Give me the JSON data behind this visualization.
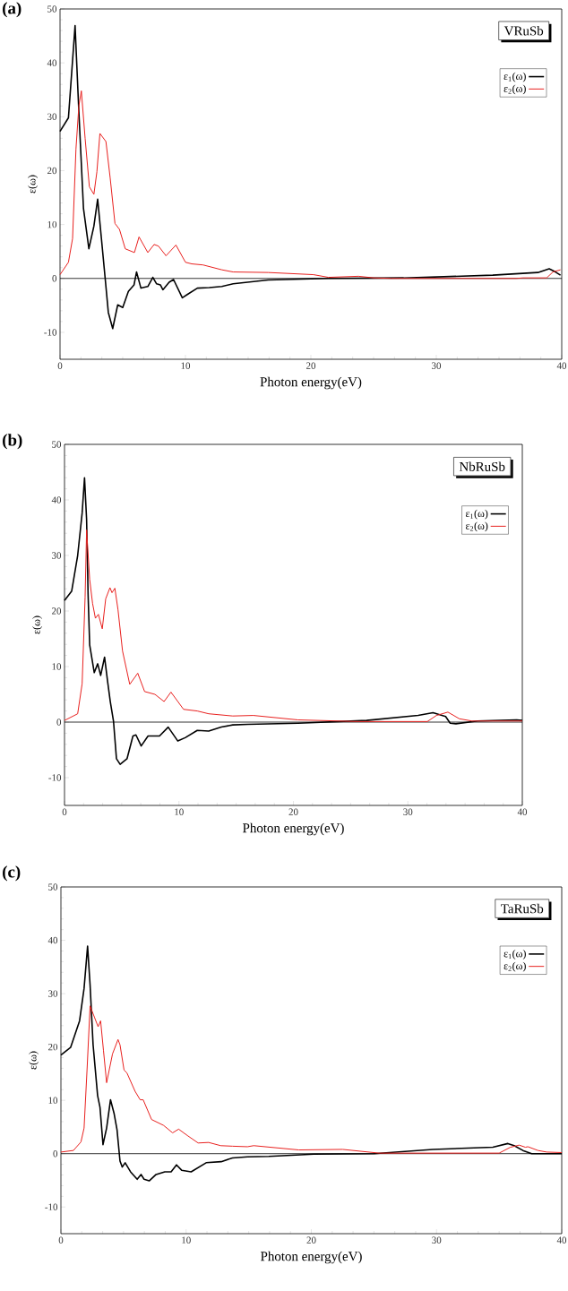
{
  "chart_data": [
    {
      "type": "line",
      "title": "(a)",
      "annotations": [
        "VRuSb"
      ],
      "xlabel": "Photon energy(eV)",
      "ylabel": "ε(ω)",
      "xlim": [
        0,
        40
      ],
      "ylim": [
        -15,
        50
      ],
      "xticks": [
        0,
        10,
        20,
        30,
        40
      ],
      "yticks": [
        -10,
        0,
        10,
        20,
        30,
        40,
        50
      ],
      "legend": "top right",
      "ref_lines": [
        {
          "axis": "y",
          "value": 0,
          "color": "#000000"
        }
      ],
      "series": [
        {
          "name": "ε$_{1}$(ω)",
          "color": "#000000",
          "x": [
            0,
            0.67,
            1.2,
            1.5,
            1.87,
            2.3,
            2.7,
            3.0,
            3.3,
            3.6,
            3.85,
            4.2,
            4.6,
            5.0,
            5.45,
            5.9,
            6.1,
            6.45,
            7.0,
            7.4,
            7.7,
            8.0,
            8.2,
            8.7,
            9.05,
            9.75,
            10.2,
            10.95,
            11.9,
            12.9,
            13.8,
            16.6,
            21.4,
            27.4,
            34.5,
            38.1,
            39.0,
            39.5,
            39.9
          ],
          "values": [
            27.3,
            29.8,
            46.9,
            31,
            13,
            5.5,
            9.7,
            14.7,
            7.4,
            0,
            -6.3,
            -9.3,
            -4.9,
            -5.4,
            -2.4,
            -1.2,
            1.2,
            -1.8,
            -1.5,
            0.2,
            -1.0,
            -1.2,
            -2.1,
            -0.7,
            -0.2,
            -3.6,
            -2.9,
            -1.8,
            -1.7,
            -1.5,
            -1.0,
            -0.3,
            0,
            0.1,
            0.6,
            1.1,
            1.8,
            1.2,
            0.6
          ]
        },
        {
          "name": "ε$_{2}$(ω)",
          "color": "#e8201e",
          "x": [
            0,
            0.67,
            1.0,
            1.27,
            1.5,
            1.7,
            2.0,
            2.34,
            2.7,
            2.94,
            3.18,
            3.66,
            4.0,
            4.38,
            4.74,
            5.2,
            5.93,
            6.3,
            7.0,
            7.5,
            7.85,
            8.45,
            9.24,
            10.0,
            10.5,
            11.4,
            12.9,
            13.8,
            16.6,
            20.2,
            21.4,
            23.8,
            25,
            26.4,
            36.4,
            36.9,
            38.8,
            39.3,
            39.9
          ],
          "values": [
            0.7,
            3,
            7.4,
            24,
            32,
            34.8,
            26,
            17,
            15.6,
            19.8,
            26.9,
            25.4,
            18.6,
            10.2,
            9.1,
            5.5,
            4.8,
            7.7,
            4.8,
            6.3,
            6.0,
            4.2,
            6.2,
            3.0,
            2.7,
            2.5,
            1.6,
            1.2,
            1.1,
            0.7,
            0.2,
            0.4,
            0.1,
            0,
            0,
            0.1,
            0.1,
            1.2,
            1.6
          ]
        }
      ]
    },
    {
      "type": "line",
      "title": "(b)",
      "annotations": [
        "NbRuSb"
      ],
      "xlabel": "Photon energy(eV)",
      "ylabel": "ε(ω)",
      "xlim": [
        0,
        40
      ],
      "ylim": [
        -15,
        50
      ],
      "xticks": [
        0,
        10,
        20,
        30,
        40
      ],
      "yticks": [
        -10,
        0,
        10,
        20,
        30,
        40,
        50
      ],
      "legend": "top right",
      "ref_lines": [
        {
          "axis": "y",
          "value": 0,
          "color": "#000000"
        }
      ],
      "series": [
        {
          "name": "ε$_{1}$(ω)",
          "color": "#000000",
          "x": [
            0,
            0.63,
            1.15,
            1.54,
            1.75,
            1.93,
            2.06,
            2.2,
            2.6,
            2.9,
            3.16,
            3.5,
            3.76,
            4.0,
            4.28,
            4.54,
            4.86,
            5.46,
            5.98,
            6.24,
            6.7,
            7.3,
            8.3,
            9.06,
            9.9,
            10.55,
            11.6,
            12.6,
            13.7,
            14.7,
            16.0,
            20.4,
            26.4,
            30.9,
            32.2,
            33.3,
            33.7,
            34.2,
            36.1,
            39.5,
            40
          ],
          "values": [
            21.9,
            23.6,
            30,
            37.6,
            44,
            36.5,
            23,
            13.9,
            8.9,
            10.5,
            8.4,
            11.7,
            7.4,
            3.7,
            0.2,
            -6.6,
            -7.6,
            -6.6,
            -2.5,
            -2.3,
            -4.3,
            -2.5,
            -2.5,
            -0.9,
            -3.4,
            -2.8,
            -1.5,
            -1.6,
            -0.9,
            -0.5,
            -0.4,
            -0.2,
            0.3,
            1.2,
            1.7,
            1.0,
            -0.2,
            -0.3,
            0.2,
            0.4,
            0.3
          ]
        },
        {
          "name": "ε$_{2}$(ω)",
          "color": "#e8201e",
          "x": [
            0,
            1.15,
            1.54,
            1.8,
            1.93,
            2.2,
            2.45,
            2.7,
            2.96,
            3.3,
            3.6,
            3.97,
            4.15,
            4.4,
            4.67,
            5.07,
            5.7,
            6.4,
            7.0,
            7.9,
            8.7,
            9.3,
            10.4,
            11.6,
            12.6,
            14.7,
            16.5,
            20.4,
            25.7,
            31.7,
            32.5,
            33.5,
            34.5,
            35.6,
            40
          ],
          "values": [
            0.3,
            1.5,
            6.9,
            22.5,
            34.6,
            25.7,
            21.4,
            18.7,
            19.4,
            16.8,
            22.2,
            24.2,
            23.3,
            24.1,
            20.3,
            12.8,
            6.8,
            8.8,
            5.5,
            5.0,
            3.7,
            5.4,
            2.3,
            2.0,
            1.5,
            1.1,
            1.2,
            0.4,
            0.1,
            0.1,
            1.2,
            1.8,
            0.6,
            0.2,
            0.2
          ]
        }
      ]
    },
    {
      "type": "line",
      "title": "(c)",
      "annotations": [
        "TaRuSb"
      ],
      "xlabel": "Photon energy(eV)",
      "ylabel": "ε(ω)",
      "xlim": [
        0,
        40
      ],
      "ylim": [
        -15,
        50
      ],
      "xticks": [
        0,
        10,
        20,
        30,
        40
      ],
      "yticks": [
        -10,
        0,
        10,
        20,
        30,
        40,
        50
      ],
      "legend": "top right",
      "ref_lines": [
        {
          "axis": "y",
          "value": 0,
          "color": "#000000"
        }
      ],
      "series": [
        {
          "name": "ε$_{1}$(ω)",
          "color": "#000000",
          "x": [
            0,
            0.77,
            1.49,
            1.85,
            2.13,
            2.33,
            2.57,
            2.93,
            3.12,
            3.36,
            3.65,
            3.96,
            4.24,
            4.48,
            4.72,
            4.9,
            5.13,
            5.56,
            6.09,
            6.4,
            6.64,
            7.05,
            7.6,
            8.3,
            8.8,
            9.23,
            9.64,
            10.4,
            11.6,
            12.8,
            13.7,
            14.9,
            16.6,
            20.2,
            25,
            29.7,
            34.5,
            35.7,
            36.2,
            36.9,
            37.6,
            40
          ],
          "values": [
            18.5,
            19.9,
            24.9,
            31,
            38.9,
            31.6,
            20.4,
            10.9,
            8.7,
            1.7,
            4.8,
            10.1,
            7.6,
            4.5,
            -1.4,
            -2.5,
            -1.7,
            -3.4,
            -4.8,
            -3.9,
            -4.8,
            -5.1,
            -3.9,
            -3.4,
            -3.4,
            -2.1,
            -3.1,
            -3.4,
            -1.7,
            -1.5,
            -0.8,
            -0.6,
            -0.5,
            -0.1,
            0,
            0.8,
            1.2,
            1.9,
            1.5,
            0.6,
            0,
            0
          ]
        },
        {
          "name": "ε$_{2}$(ω)",
          "color": "#e8201e",
          "x": [
            0,
            1.0,
            1.6,
            1.85,
            2.09,
            2.33,
            2.69,
            2.97,
            3.17,
            3.4,
            3.65,
            4.12,
            4.56,
            4.72,
            5.04,
            5.28,
            5.92,
            6.33,
            6.57,
            7.24,
            8.2,
            8.92,
            9.4,
            10.1,
            10.96,
            11.8,
            12.76,
            13.7,
            14.9,
            15.4,
            19,
            22.5,
            25.4,
            35,
            35.9,
            36.6,
            37.1,
            37.3,
            38.1,
            38.8,
            40
          ],
          "values": [
            0.3,
            0.6,
            2.2,
            4.8,
            15.9,
            27.7,
            25.5,
            23.8,
            24.9,
            19.3,
            13.3,
            18.7,
            21.4,
            20.4,
            15.7,
            15.1,
            11.7,
            10.1,
            10.1,
            6.4,
            5.3,
            3.9,
            4.6,
            3.4,
            2.0,
            2.1,
            1.5,
            1.4,
            1.3,
            1.5,
            0.7,
            0.8,
            0.1,
            0.1,
            1.2,
            1.6,
            1.2,
            1.3,
            0.6,
            0.3,
            0.2
          ]
        }
      ]
    }
  ]
}
